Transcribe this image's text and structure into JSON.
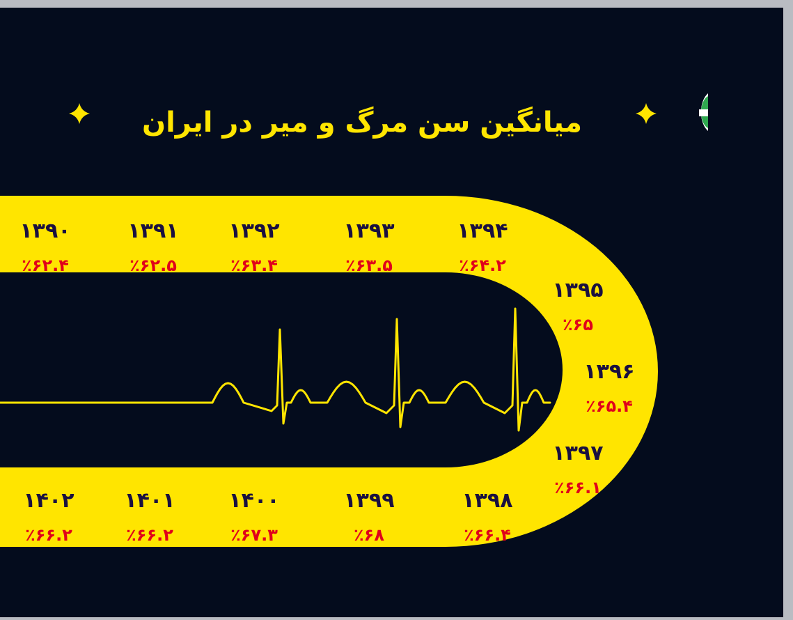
{
  "title": "میانگین سن مرگ و میر در ایران",
  "colors": {
    "background": "#040c1d",
    "track": "#ffe500",
    "year_text": "#1a1040",
    "value_text": "#e0001b",
    "pulse_line": "#ffe500",
    "badge_green": "#2fa84f"
  },
  "icons": [
    "sparkle-icon",
    "flag-badge-icon"
  ],
  "chart_data": {
    "type": "line",
    "title": "میانگین سن مرگ و میر در ایران",
    "xlabel": "",
    "ylabel": "",
    "categories": [
      "۱۳۹۰",
      "۱۳۹۱",
      "۱۳۹۲",
      "۱۳۹۳",
      "۱۳۹۴",
      "۱۳۹۵",
      "۱۳۹۶",
      "۱۳۹۷",
      "۱۳۹۸",
      "۱۳۹۹",
      "۱۴۰۰",
      "۱۴۰۱",
      "۱۴۰۲"
    ],
    "values": [
      62.4,
      62.5,
      63.4,
      63.5,
      64.2,
      65,
      65.4,
      66.1,
      66.4,
      68,
      67.3,
      66.2,
      66.2
    ],
    "value_labels": [
      "٪۶۲.۴",
      "٪۶۲.۵",
      "٪۶۳.۴",
      "٪۶۳.۵",
      "٪۶۴.۲",
      "٪۶۵",
      "٪۶۵.۴",
      "٪۶۶.۱",
      "٪۶۶.۴",
      "٪۶۸",
      "٪۶۷.۳",
      "٪۶۶.۲",
      "٪۶۶.۲"
    ]
  }
}
